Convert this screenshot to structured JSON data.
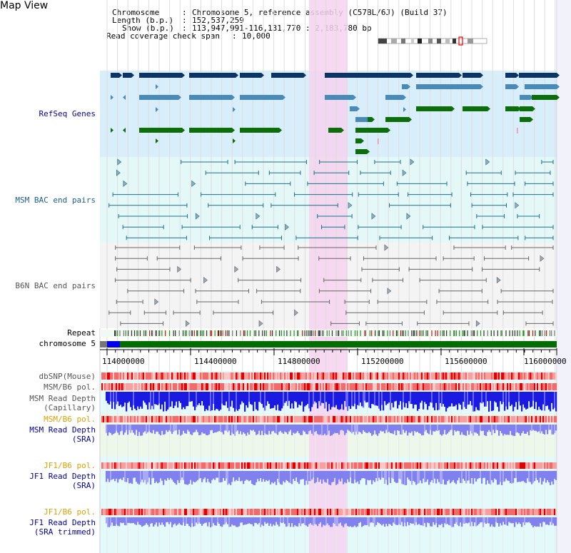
{
  "app": {
    "title": "Map View"
  },
  "header": {
    "chromosome_key": "Chromosome",
    "chromosome_val": "Chromosome 5, reference assembly (C57BL/6J) (Build 37)",
    "length_key": "Length (b.p.)",
    "length_val": "152,537,259",
    "show_key": "Show (b.p.)",
    "show_val": "113,947,991-116,131,770 : 2,183,780 bp",
    "coverage_key": "Read coverage check span",
    "coverage_val": "10,000"
  },
  "tracks": {
    "refseq": "RefSeq Genes",
    "msm_bac": "MSM BAC end pairs",
    "b6n_bac": "B6N BAC end pairs",
    "repeat": "Repeat",
    "chromosome": "chromosome 5",
    "dbsnp": "dbSNP(Mouse)",
    "msm_b6_pol_1": "MSM/B6 pol.",
    "msm_read_depth_cap_1": "MSM Read Depth",
    "msm_read_depth_cap_2": "(Capillary)",
    "msm_b6_pol_2": "MSM/B6 pol.",
    "msm_read_depth_sra_1": "MSM Read Depth",
    "msm_read_depth_sra_2": "(SRA)",
    "jf1_b6_pol_1": "JF1/B6 pol.",
    "jf1_read_depth_sra_1": "JF1 Read Depth",
    "jf1_read_depth_sra_2": "(SRA)",
    "jf1_b6_pol_2": "JF1/B6 pol.",
    "jf1_read_depth_trim_1": "JF1 Read Depth",
    "jf1_read_depth_trim_2": "(SRA trimmed)"
  },
  "axis": {
    "ticks": [
      "114000000",
      "114400000",
      "114800000",
      "115200000",
      "115600000",
      "116000000"
    ]
  },
  "colors": {
    "refseq_dark": "#0b3566",
    "refseq_mid": "#4a8ab8",
    "refseq_green": "#0b6e0b",
    "msm_bac": "#1b6f8a",
    "b6n_bac": "#666666",
    "highlight": "#f6d2ef",
    "read_depth_blue": "#2222dd",
    "read_depth_light": "#8888ee",
    "pol_red": "#e02020",
    "label_blue": "#0000aa",
    "label_orange": "#e0a000"
  }
}
